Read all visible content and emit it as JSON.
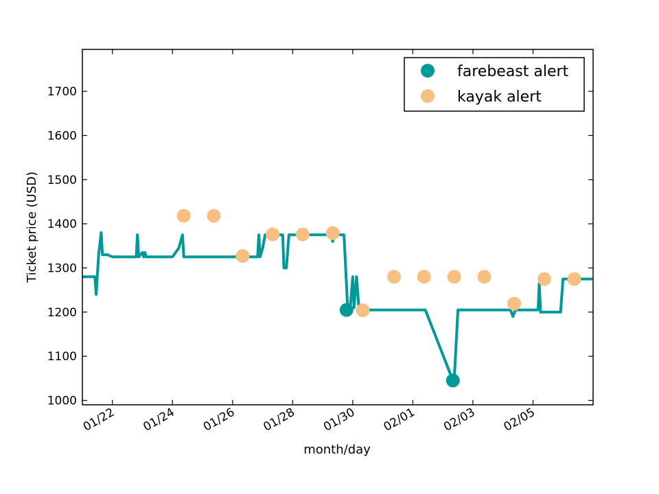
{
  "chart_data": {
    "type": "line",
    "title": "",
    "xlabel": "month/day",
    "ylabel": "Ticket price (USD)",
    "xlim": [
      "2015-01-21",
      "2015-02-07"
    ],
    "ylim": [
      990,
      1795
    ],
    "grid": false,
    "legend_position": "top-right",
    "x_ticks": [
      {
        "date": "2015-01-22",
        "label": "01/22"
      },
      {
        "date": "2015-01-24",
        "label": "01/24"
      },
      {
        "date": "2015-01-26",
        "label": "01/26"
      },
      {
        "date": "2015-01-28",
        "label": "01/28"
      },
      {
        "date": "2015-01-30",
        "label": "01/30"
      },
      {
        "date": "2015-02-01",
        "label": "02/01"
      },
      {
        "date": "2015-02-03",
        "label": "02/03"
      },
      {
        "date": "2015-02-05",
        "label": "02/05"
      }
    ],
    "y_ticks": [
      1000,
      1100,
      1200,
      1300,
      1400,
      1500,
      1600,
      1700
    ],
    "series": [
      {
        "kind": "line",
        "color": "#009999",
        "points": [
          [
            "2015-01-21 00:00",
            1280
          ],
          [
            "2015-01-21 10:00",
            1280
          ],
          [
            "2015-01-21 11:00",
            1240
          ],
          [
            "2015-01-21 13:00",
            1330
          ],
          [
            "2015-01-21 15:00",
            1380
          ],
          [
            "2015-01-21 16:00",
            1330
          ],
          [
            "2015-01-21 20:00",
            1330
          ],
          [
            "2015-01-22 00:00",
            1325
          ],
          [
            "2015-01-22 19:00",
            1325
          ],
          [
            "2015-01-22 20:00",
            1375
          ],
          [
            "2015-01-22 21:00",
            1325
          ],
          [
            "2015-01-23 00:00",
            1335
          ],
          [
            "2015-01-23 01:00",
            1325
          ],
          [
            "2015-01-23 02:00",
            1335
          ],
          [
            "2015-01-23 03:00",
            1325
          ],
          [
            "2015-01-24 00:00",
            1325
          ],
          [
            "2015-01-24 05:00",
            1345
          ],
          [
            "2015-01-24 08:00",
            1375
          ],
          [
            "2015-01-24 09:00",
            1325
          ],
          [
            "2015-01-26 20:00",
            1325
          ],
          [
            "2015-01-26 21:00",
            1375
          ],
          [
            "2015-01-26 22:00",
            1325
          ],
          [
            "2015-01-27 00:00",
            1345
          ],
          [
            "2015-01-27 02:00",
            1375
          ],
          [
            "2015-01-27 16:00",
            1375
          ],
          [
            "2015-01-27 17:00",
            1300
          ],
          [
            "2015-01-27 19:00",
            1300
          ],
          [
            "2015-01-27 21:00",
            1375
          ],
          [
            "2015-01-29 07:00",
            1375
          ],
          [
            "2015-01-29 08:00",
            1360
          ],
          [
            "2015-01-29 09:00",
            1375
          ],
          [
            "2015-01-29 17:00",
            1375
          ],
          [
            "2015-01-29 20:00",
            1205
          ],
          [
            "2015-01-29 22:00",
            1210
          ],
          [
            "2015-01-30 00:00",
            1280
          ],
          [
            "2015-01-30 01:00",
            1210
          ],
          [
            "2015-01-30 03:00",
            1280
          ],
          [
            "2015-01-30 05:00",
            1205
          ],
          [
            "2015-01-31 20:00",
            1205
          ],
          [
            "2015-02-01 10:00",
            1205
          ],
          [
            "2015-02-02 08:00",
            1045
          ],
          [
            "2015-02-02 09:00",
            1045
          ],
          [
            "2015-02-02 12:00",
            1205
          ],
          [
            "2015-02-04 06:00",
            1205
          ],
          [
            "2015-02-04 08:00",
            1190
          ],
          [
            "2015-02-04 10:00",
            1205
          ],
          [
            "2015-02-05 04:00",
            1205
          ],
          [
            "2015-02-05 05:00",
            1265
          ],
          [
            "2015-02-05 06:00",
            1200
          ],
          [
            "2015-02-05 22:00",
            1200
          ],
          [
            "2015-02-06 00:00",
            1275
          ],
          [
            "2015-02-07 00:00",
            1275
          ]
        ]
      },
      {
        "kind": "scatter",
        "name": "farebeast alert",
        "color": "#009999",
        "points": [
          [
            "2015-01-29 19:00",
            1205
          ],
          [
            "2015-02-02 08:00",
            1045
          ]
        ]
      },
      {
        "kind": "scatter",
        "name": "kayak alert",
        "color": "#f8bf82",
        "points": [
          [
            "2015-01-24 09:00",
            1418
          ],
          [
            "2015-01-25 09:00",
            1418
          ],
          [
            "2015-01-26 08:00",
            1327
          ],
          [
            "2015-01-27 08:00",
            1376
          ],
          [
            "2015-01-28 08:00",
            1376
          ],
          [
            "2015-01-29 08:00",
            1379
          ],
          [
            "2015-01-30 08:00",
            1204
          ],
          [
            "2015-01-31 09:00",
            1280
          ],
          [
            "2015-02-01 09:00",
            1280
          ],
          [
            "2015-02-02 09:00",
            1280
          ],
          [
            "2015-02-03 09:00",
            1280
          ],
          [
            "2015-02-04 09:00",
            1219
          ],
          [
            "2015-02-05 09:00",
            1275
          ],
          [
            "2015-02-06 09:00",
            1275
          ]
        ]
      }
    ]
  }
}
